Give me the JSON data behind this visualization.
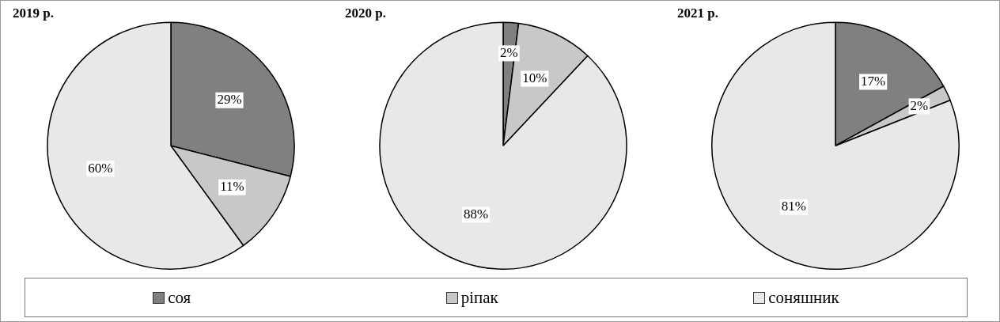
{
  "chart_data": [
    {
      "type": "pie",
      "title": "2019 р.",
      "categories": [
        "соя",
        "ріпак",
        "соняшник"
      ],
      "values": [
        29,
        11,
        60
      ],
      "colors": [
        "#808080",
        "#c8c8c8",
        "#e8e8e8"
      ],
      "value_labels": [
        "29%",
        "11%",
        "60%"
      ],
      "legend": "bottom"
    },
    {
      "type": "pie",
      "title": "2020 р.",
      "categories": [
        null,
        null,
        null
      ],
      "values": [
        2,
        10,
        88
      ],
      "colors": [
        "#808080",
        "#c8c8c8",
        "#e8e8e8"
      ],
      "value_labels": [
        "2%",
        "10%",
        "88%"
      ]
    },
    {
      "type": "pie",
      "title": "2021 р.",
      "categories": [
        null,
        null,
        null
      ],
      "values": [
        17,
        2,
        81
      ],
      "colors": [
        "#808080",
        "#c8c8c8",
        "#e8e8e8"
      ],
      "value_labels": [
        "17%",
        "2%",
        "81%"
      ]
    }
  ]
}
